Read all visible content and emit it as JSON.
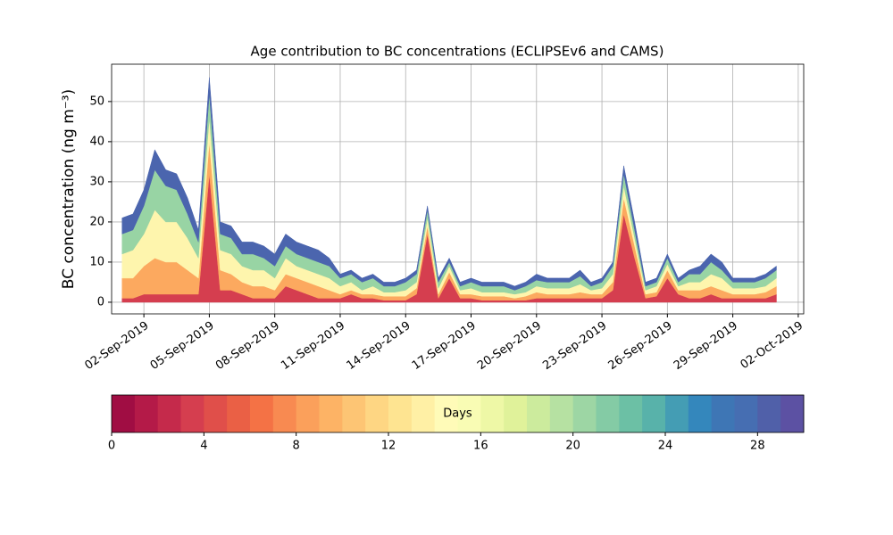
{
  "chart_data": {
    "type": "stacked-area",
    "title": "Age contribution to BC concentrations (ECLIPSEv6 and CAMS)",
    "y_label": "BC concentration (ng m⁻³)",
    "x": [
      "2019-09-01T00:00",
      "2019-09-01T12:00",
      "2019-09-02T00:00",
      "2019-09-02T12:00",
      "2019-09-03T00:00",
      "2019-09-03T12:00",
      "2019-09-04T00:00",
      "2019-09-04T12:00",
      "2019-09-05T00:00",
      "2019-09-05T12:00",
      "2019-09-06T00:00",
      "2019-09-06T12:00",
      "2019-09-07T00:00",
      "2019-09-07T12:00",
      "2019-09-08T00:00",
      "2019-09-08T12:00",
      "2019-09-09T00:00",
      "2019-09-09T12:00",
      "2019-09-10T00:00",
      "2019-09-10T12:00",
      "2019-09-11T00:00",
      "2019-09-11T12:00",
      "2019-09-12T00:00",
      "2019-09-12T12:00",
      "2019-09-13T00:00",
      "2019-09-13T12:00",
      "2019-09-14T00:00",
      "2019-09-14T12:00",
      "2019-09-15T00:00",
      "2019-09-15T12:00",
      "2019-09-16T00:00",
      "2019-09-16T12:00",
      "2019-09-17T00:00",
      "2019-09-17T12:00",
      "2019-09-18T00:00",
      "2019-09-18T12:00",
      "2019-09-19T00:00",
      "2019-09-19T12:00",
      "2019-09-20T00:00",
      "2019-09-20T12:00",
      "2019-09-21T00:00",
      "2019-09-21T12:00",
      "2019-09-22T00:00",
      "2019-09-22T12:00",
      "2019-09-23T00:00",
      "2019-09-23T12:00",
      "2019-09-24T00:00",
      "2019-09-24T12:00",
      "2019-09-25T00:00",
      "2019-09-25T12:00",
      "2019-09-26T00:00",
      "2019-09-26T12:00",
      "2019-09-27T00:00",
      "2019-09-27T12:00",
      "2019-09-28T00:00",
      "2019-09-28T12:00",
      "2019-09-29T00:00",
      "2019-09-29T12:00",
      "2019-09-30T00:00",
      "2019-09-30T12:00",
      "2019-10-01T00:00"
    ],
    "series": [
      {
        "color": "#d53e4f",
        "values": [
          1,
          1,
          2,
          2,
          2,
          2,
          2,
          2,
          32,
          3,
          3,
          2,
          1,
          1,
          1,
          4,
          3,
          2,
          1,
          1,
          1,
          2,
          1,
          1,
          0.5,
          0.5,
          0.5,
          2,
          17,
          1,
          6,
          1,
          1,
          0.5,
          0.5,
          0.5,
          0.5,
          0.5,
          1,
          1,
          1,
          1,
          1,
          1,
          1,
          3,
          22,
          11,
          1,
          1.5,
          6,
          2,
          1,
          1,
          2,
          1,
          1,
          1,
          1,
          1,
          2
        ]
      },
      {
        "color": "#fca95f",
        "values": [
          5,
          5,
          7,
          9,
          8,
          8,
          6,
          4,
          8,
          5,
          4,
          3,
          3,
          3,
          2,
          3,
          3,
          3,
          3,
          2,
          1,
          1,
          1,
          1,
          1,
          1,
          1,
          1.5,
          2,
          1,
          1.5,
          1,
          1,
          1,
          1,
          1,
          0.5,
          1,
          1.5,
          1,
          1,
          1,
          1.5,
          1,
          1,
          2,
          4,
          3,
          1,
          1,
          2,
          1,
          2,
          2,
          2,
          2,
          1,
          1,
          1,
          1.5,
          2
        ]
      },
      {
        "color": "#fef5ad",
        "values": [
          6,
          7,
          8,
          12,
          10,
          10,
          8,
          5,
          6,
          5,
          5,
          4,
          4,
          4,
          3,
          4,
          3,
          3,
          3,
          3,
          2,
          2,
          1,
          2,
          1,
          1,
          1.5,
          1.5,
          2,
          1.5,
          1.5,
          1,
          1.5,
          1,
          1,
          1,
          1,
          1,
          1.5,
          1.5,
          1.5,
          1.5,
          2,
          1,
          1.5,
          2,
          3,
          2,
          1,
          1.5,
          1.5,
          1,
          2,
          2,
          3,
          3,
          1.5,
          1.5,
          1.5,
          1.5,
          2
        ]
      },
      {
        "color": "#98d4a4",
        "values": [
          5,
          5,
          7,
          10,
          9,
          8,
          6,
          4,
          6,
          4,
          4,
          3,
          4,
          3,
          3,
          3,
          3,
          3,
          3,
          3,
          2,
          2,
          2,
          2,
          1.5,
          1.5,
          2,
          2,
          2,
          1.5,
          1,
          1,
          1.5,
          1.5,
          1.5,
          1.5,
          1,
          1.5,
          1.5,
          1.5,
          1.5,
          1.5,
          2,
          1,
          1.5,
          2,
          3,
          2,
          1,
          1,
          1.5,
          1,
          2,
          2,
          3,
          2,
          1.5,
          1.5,
          1.5,
          2,
          2
        ]
      },
      {
        "color": "#4b65ae",
        "values": [
          4,
          4,
          4,
          5,
          4,
          4,
          4,
          3,
          4,
          3,
          3,
          3,
          3,
          3,
          3,
          3,
          3,
          3,
          3,
          2,
          1,
          1,
          1,
          1,
          1,
          1,
          1,
          1,
          1,
          1,
          1,
          1,
          1,
          1,
          1,
          1,
          1,
          1,
          1.5,
          1,
          1,
          1,
          1.5,
          1,
          1,
          1,
          2,
          2,
          1,
          1,
          1,
          1,
          1,
          2,
          2,
          2,
          1,
          1,
          1,
          1,
          1
        ]
      }
    ],
    "xlim": [
      "2019-08-31T12:30",
      "2019-10-02T06:00"
    ],
    "xticks": [
      {
        "value": "2019-09-02T00:00",
        "label": "02-Sep-2019"
      },
      {
        "value": "2019-09-05T00:00",
        "label": "05-Sep-2019"
      },
      {
        "value": "2019-09-08T00:00",
        "label": "08-Sep-2019"
      },
      {
        "value": "2019-09-11T00:00",
        "label": "11-Sep-2019"
      },
      {
        "value": "2019-09-14T00:00",
        "label": "14-Sep-2019"
      },
      {
        "value": "2019-09-17T00:00",
        "label": "17-Sep-2019"
      },
      {
        "value": "2019-09-20T00:00",
        "label": "20-Sep-2019"
      },
      {
        "value": "2019-09-23T00:00",
        "label": "23-Sep-2019"
      },
      {
        "value": "2019-09-26T00:00",
        "label": "26-Sep-2019"
      },
      {
        "value": "2019-09-29T00:00",
        "label": "29-Sep-2019"
      },
      {
        "value": "2019-10-02T00:00",
        "label": "02-Oct-2019"
      }
    ],
    "ylim": [
      -2.9,
      59.3
    ],
    "yticks": [
      0,
      10,
      20,
      30,
      40,
      50
    ],
    "grid": true,
    "colorbar": {
      "label": "Days",
      "lim": [
        0,
        30
      ],
      "ticks": [
        0,
        4,
        8,
        12,
        16,
        20,
        24,
        28
      ],
      "colors": [
        "#a00d43",
        "#b41a48",
        "#c52a4b",
        "#d53e4f",
        "#e04f4a",
        "#ea6045",
        "#f47245",
        "#f88a51",
        "#fba05b",
        "#fdb365",
        "#fdc574",
        "#fed683",
        "#fee491",
        "#fff0a5",
        "#fffbb8",
        "#f9fcb4",
        "#eef8a6",
        "#e0f29a",
        "#cceb9d",
        "#b6e1a2",
        "#9dd6a4",
        "#84cba5",
        "#6cc0a5",
        "#58b2aa",
        "#449db4",
        "#3487bc",
        "#3e76b5",
        "#466eb2",
        "#5060a9",
        "#5c51a3"
      ]
    }
  }
}
